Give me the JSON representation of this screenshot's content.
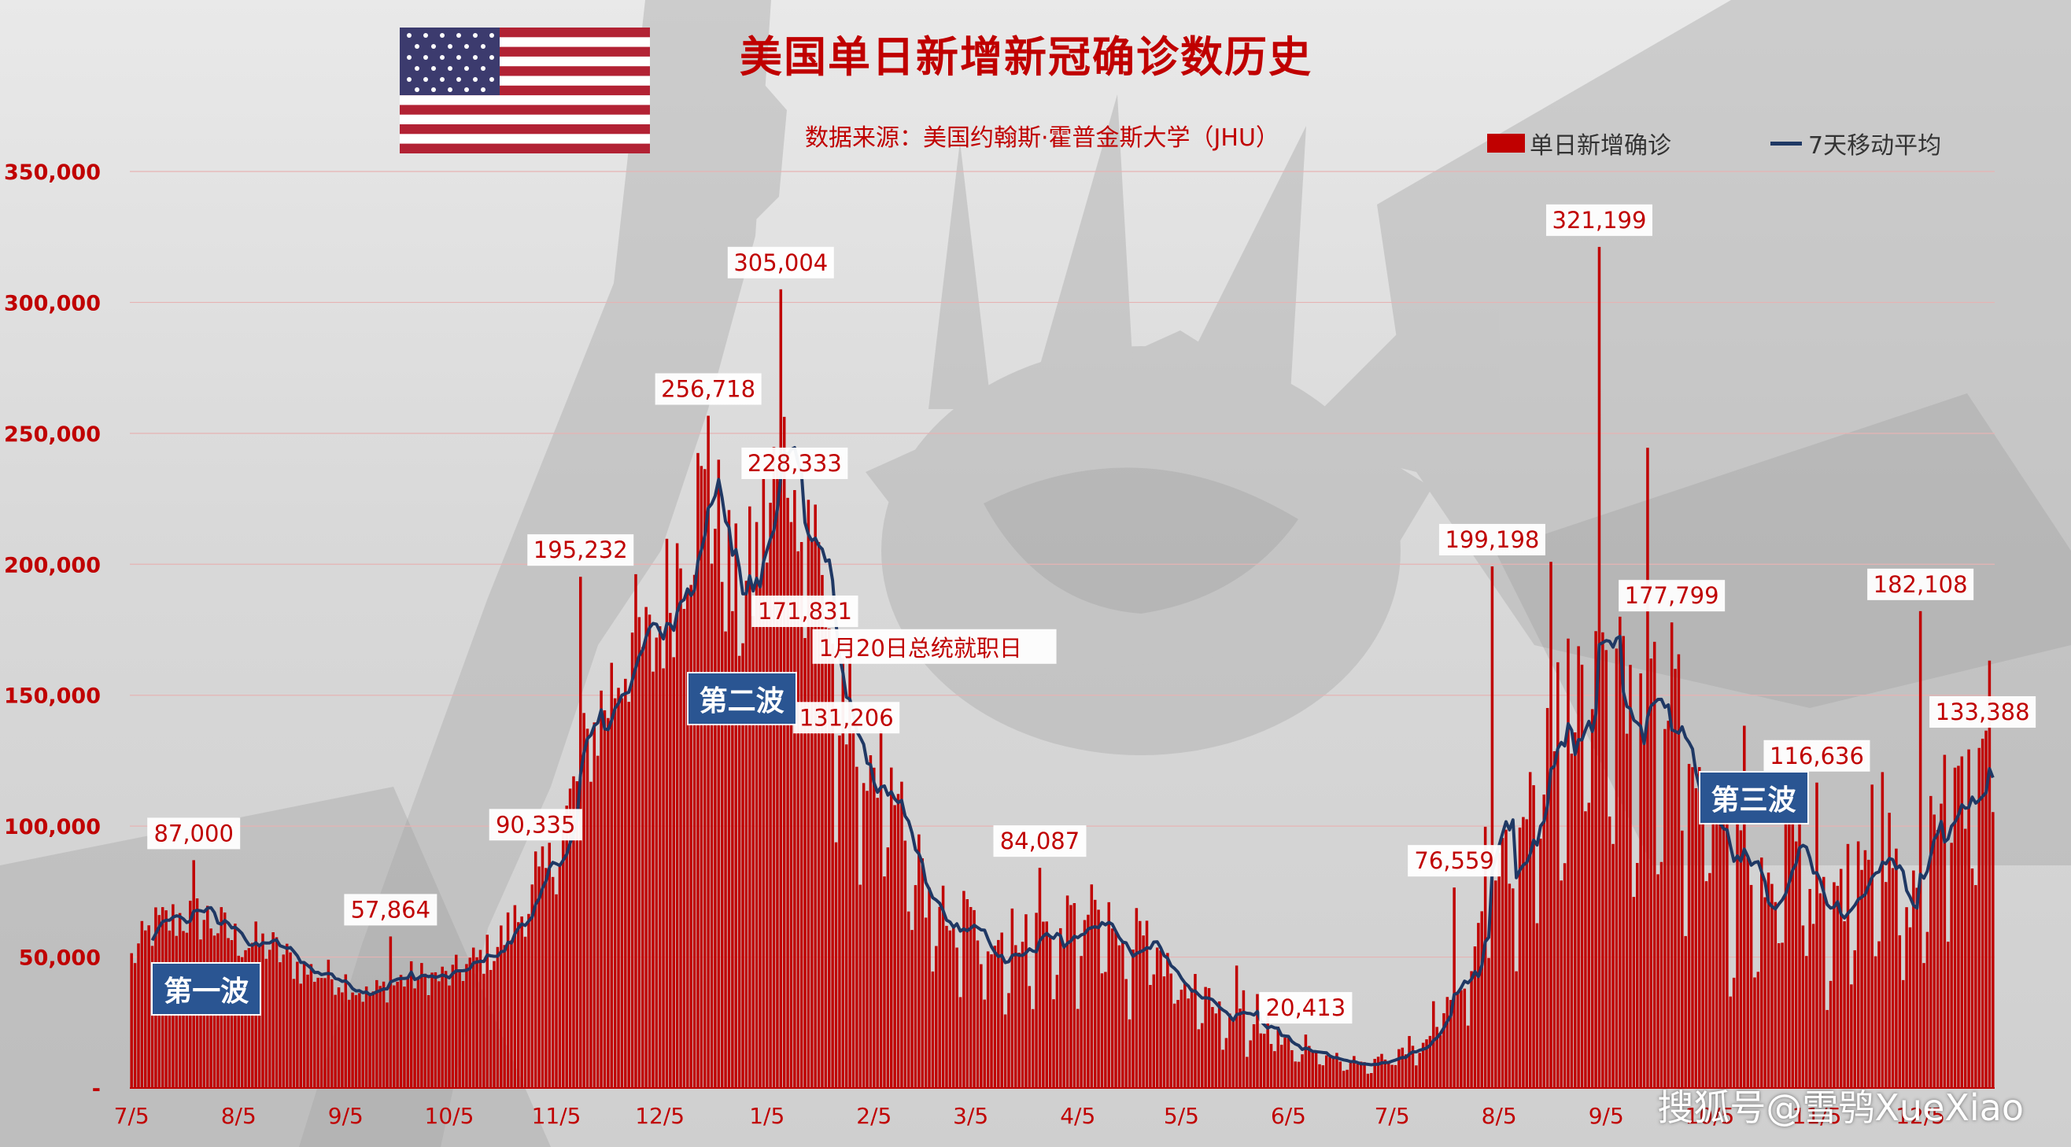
{
  "title": "美国单日新增新冠确诊数历史",
  "source": "数据来源：美国约翰斯·霍普金斯大学（JHU）",
  "watermark": "搜狐号@雪鸮XueXiao",
  "colors": {
    "bar": "#c00000",
    "line": "#1f3864",
    "wave_box": "#2a5592",
    "text": "#c00000"
  },
  "icons": [
    "us-flag-icon"
  ],
  "waves": [
    {
      "label": "第一波",
      "idx": 8,
      "y": 42000
    },
    {
      "label": "第二波",
      "idx": 163,
      "y": 153000
    },
    {
      "label": "第三波",
      "idx": 456,
      "y": 115000
    }
  ],
  "chart_data": {
    "type": "bar",
    "ylim": [
      0,
      350000
    ],
    "yticks": [
      0,
      50000,
      100000,
      150000,
      200000,
      250000,
      300000,
      350000
    ],
    "ytick_labels": [
      "-",
      "50,000",
      "100,000",
      "150,000",
      "200,000",
      "250,000",
      "300,000",
      "350,000"
    ],
    "xticks": [
      {
        "label": "7/5",
        "idx": 0
      },
      {
        "label": "8/5",
        "idx": 31
      },
      {
        "label": "9/5",
        "idx": 62
      },
      {
        "label": "10/5",
        "idx": 92
      },
      {
        "label": "11/5",
        "idx": 123
      },
      {
        "label": "12/5",
        "idx": 153
      },
      {
        "label": "1/5",
        "idx": 184
      },
      {
        "label": "2/5",
        "idx": 215
      },
      {
        "label": "3/5",
        "idx": 243
      },
      {
        "label": "4/5",
        "idx": 274
      },
      {
        "label": "5/5",
        "idx": 304
      },
      {
        "label": "6/5",
        "idx": 335
      },
      {
        "label": "7/5",
        "idx": 365
      },
      {
        "label": "8/5",
        "idx": 396
      },
      {
        "label": "9/5",
        "idx": 427
      },
      {
        "label": "10/5",
        "idx": 457
      },
      {
        "label": "11/5",
        "idx": 488
      },
      {
        "label": "12/5",
        "idx": 518
      }
    ],
    "series": [
      {
        "name": "单日新增确诊",
        "kind": "bar",
        "daily": true
      },
      {
        "name": "7天移动平均",
        "kind": "line",
        "moving_average_days": 7
      }
    ],
    "trend_anchors": [
      [
        0,
        50000
      ],
      [
        6,
        62000
      ],
      [
        15,
        67000
      ],
      [
        22,
        66000
      ],
      [
        30,
        58000
      ],
      [
        40,
        55000
      ],
      [
        50,
        46000
      ],
      [
        62,
        42000
      ],
      [
        68,
        36000
      ],
      [
        80,
        43000
      ],
      [
        92,
        43000
      ],
      [
        105,
        54000
      ],
      [
        115,
        72000
      ],
      [
        123,
        90000
      ],
      [
        130,
        125000
      ],
      [
        137,
        150000
      ],
      [
        145,
        175000
      ],
      [
        150,
        168000
      ],
      [
        155,
        190000
      ],
      [
        160,
        215000
      ],
      [
        163,
        228000
      ],
      [
        168,
        225000
      ],
      [
        172,
        205000
      ],
      [
        176,
        185000
      ],
      [
        180,
        200000
      ],
      [
        184,
        220000
      ],
      [
        188,
        245000
      ],
      [
        192,
        252000
      ],
      [
        196,
        232000
      ],
      [
        200,
        195000
      ],
      [
        205,
        165000
      ],
      [
        212,
        140000
      ],
      [
        218,
        120000
      ],
      [
        225,
        100000
      ],
      [
        232,
        70000
      ],
      [
        240,
        70000
      ],
      [
        248,
        60000
      ],
      [
        256,
        62000
      ],
      [
        264,
        62000
      ],
      [
        272,
        65000
      ],
      [
        280,
        70000
      ],
      [
        290,
        62000
      ],
      [
        300,
        48000
      ],
      [
        310,
        36000
      ],
      [
        320,
        30000
      ],
      [
        330,
        20000
      ],
      [
        340,
        15000
      ],
      [
        348,
        12000
      ],
      [
        356,
        11000
      ],
      [
        365,
        12000
      ],
      [
        372,
        18000
      ],
      [
        380,
        30000
      ],
      [
        388,
        50000
      ],
      [
        396,
        82000
      ],
      [
        404,
        115000
      ],
      [
        412,
        140000
      ],
      [
        418,
        158000
      ],
      [
        424,
        155000
      ],
      [
        430,
        162000
      ],
      [
        436,
        160000
      ],
      [
        444,
        160000
      ],
      [
        450,
        140000
      ],
      [
        456,
        112000
      ],
      [
        462,
        95000
      ],
      [
        470,
        88000
      ],
      [
        478,
        75000
      ],
      [
        486,
        73000
      ],
      [
        494,
        75000
      ],
      [
        500,
        80000
      ],
      [
        505,
        95000
      ],
      [
        510,
        95000
      ],
      [
        514,
        72000
      ],
      [
        518,
        78000
      ],
      [
        522,
        118000
      ],
      [
        532,
        120000
      ],
      [
        538,
        123000
      ]
    ],
    "peaks": [
      {
        "idx": 18,
        "value": 87000,
        "label": "87,000"
      },
      {
        "idx": 75,
        "value": 57864,
        "label": "57,864"
      },
      {
        "idx": 117,
        "value": 90335,
        "label": "90,335"
      },
      {
        "idx": 130,
        "value": 195232,
        "label": "195,232"
      },
      {
        "idx": 167,
        "value": 256718,
        "label": "256,718"
      },
      {
        "idx": 188,
        "value": 305004,
        "label": "305,004"
      },
      {
        "idx": 192,
        "value": 228333,
        "label": "228,333"
      },
      {
        "idx": 195,
        "value": 171831,
        "label": "171,831"
      },
      {
        "idx": 207,
        "value": 131206,
        "label": "131,206"
      },
      {
        "idx": 263,
        "value": 84087,
        "label": "84,087"
      },
      {
        "idx": 340,
        "value": 20413,
        "label": "20,413"
      },
      {
        "idx": 383,
        "value": 76559,
        "label": "76,559"
      },
      {
        "idx": 394,
        "value": 199198,
        "label": "199,198"
      },
      {
        "idx": 425,
        "value": 321199,
        "label": "321,199"
      },
      {
        "idx": 446,
        "value": 177799,
        "label": "177,799"
      },
      {
        "idx": 488,
        "value": 116636,
        "label": "116,636"
      },
      {
        "idx": 518,
        "value": 182108,
        "label": "182,108"
      },
      {
        "idx": 536,
        "value": 133388,
        "label": "133,388"
      }
    ],
    "annotations": [
      {
        "text": "1月20日总统就职日",
        "idx": 199,
        "y": 165000
      }
    ]
  }
}
